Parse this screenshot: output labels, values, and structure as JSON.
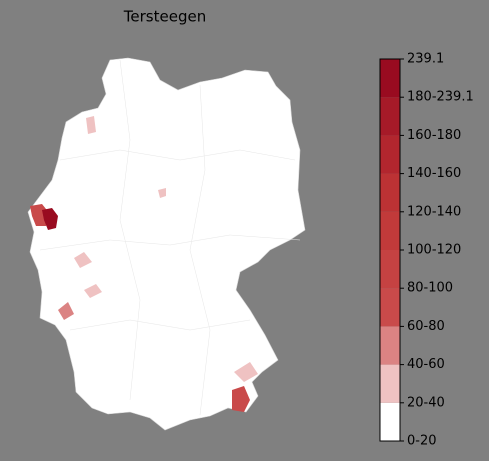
{
  "title": "Tersteegen",
  "colorbar": {
    "labels": [
      "0-20",
      "20-40",
      "40-60",
      "60-80",
      "80-100",
      "100-120",
      "120-140",
      "140-160",
      "160-180",
      "180-239.1",
      "239.1"
    ],
    "colors": [
      "#ffffff",
      "#efc2c2",
      "#db8383",
      "#c94a4a",
      "#c54242",
      "#c13a3a",
      "#bc3234",
      "#b2262e",
      "#a61a28",
      "#990b20"
    ]
  }
}
